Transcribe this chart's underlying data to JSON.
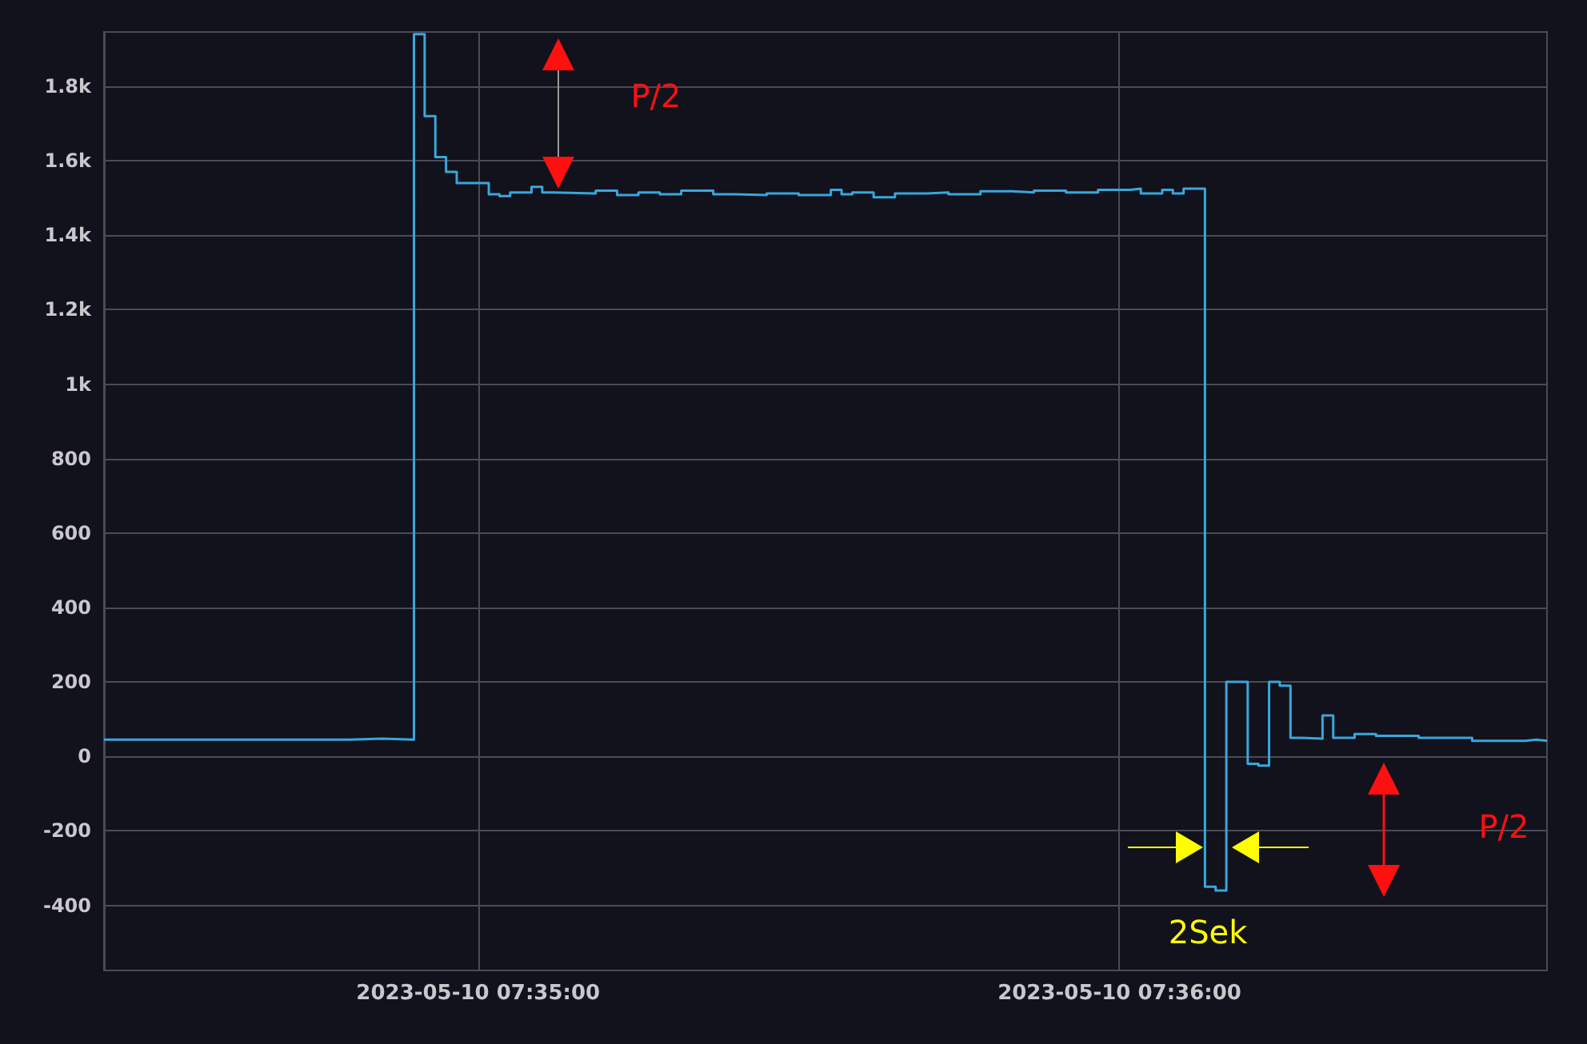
{
  "chart_data": {
    "type": "step",
    "x": [
      "2023-05-10T07:34:25",
      "2023-05-10T07:34:48",
      "2023-05-10T07:34:51",
      "2023-05-10T07:34:54",
      "2023-05-10T07:34:55",
      "2023-05-10T07:34:56",
      "2023-05-10T07:34:57",
      "2023-05-10T07:34:58",
      "2023-05-10T07:35:01",
      "2023-05-10T07:35:02",
      "2023-05-10T07:35:03",
      "2023-05-10T07:35:05",
      "2023-05-10T07:35:06",
      "2023-05-10T07:35:07",
      "2023-05-10T07:35:11",
      "2023-05-10T07:35:13",
      "2023-05-10T07:35:15",
      "2023-05-10T07:35:17",
      "2023-05-10T07:35:19",
      "2023-05-10T07:35:22",
      "2023-05-10T07:35:24",
      "2023-05-10T07:35:27",
      "2023-05-10T07:35:30",
      "2023-05-10T07:35:33",
      "2023-05-10T07:35:34",
      "2023-05-10T07:35:35",
      "2023-05-10T07:35:37",
      "2023-05-10T07:35:39",
      "2023-05-10T07:35:42",
      "2023-05-10T07:35:44",
      "2023-05-10T07:35:47",
      "2023-05-10T07:35:50",
      "2023-05-10T07:35:52",
      "2023-05-10T07:35:55",
      "2023-05-10T07:35:58",
      "2023-05-10T07:36:01",
      "2023-05-10T07:36:02",
      "2023-05-10T07:36:04",
      "2023-05-10T07:36:05",
      "2023-05-10T07:36:06",
      "2023-05-10T07:36:08",
      "2023-05-10T07:36:09",
      "2023-05-10T07:36:10",
      "2023-05-10T07:36:12",
      "2023-05-10T07:36:13",
      "2023-05-10T07:36:14",
      "2023-05-10T07:36:15",
      "2023-05-10T07:36:16",
      "2023-05-10T07:36:17",
      "2023-05-10T07:36:19",
      "2023-05-10T07:36:20",
      "2023-05-10T07:36:22",
      "2023-05-10T07:36:24",
      "2023-05-10T07:36:28",
      "2023-05-10T07:36:33",
      "2023-05-10T07:36:38",
      "2023-05-10T07:36:39",
      "2023-05-10T07:36:40"
    ],
    "series": [
      {
        "color": "#3aa6dc",
        "values": [
          45,
          48,
          45,
          1940,
          1720,
          1610,
          1570,
          1540,
          1510,
          1505,
          1515,
          1530,
          1515,
          1512,
          1520,
          1508,
          1515,
          1510,
          1520,
          1510,
          1508,
          1512,
          1508,
          1522,
          1510,
          1515,
          1502,
          1512,
          1515,
          1510,
          1518,
          1515,
          1520,
          1515,
          1522,
          1525,
          1512,
          1522,
          1512,
          1525,
          -350,
          -360,
          200,
          -20,
          -25,
          200,
          190,
          50,
          48,
          110,
          50,
          60,
          55,
          50,
          42,
          45,
          42,
          42
        ]
      }
    ],
    "xlim": [
      "2023-05-10T07:34:25",
      "2023-05-10T07:36:40"
    ],
    "xticks": [
      {
        "value": "2023-05-10T07:35:00",
        "label": "2023-05-10 07:35:00"
      },
      {
        "value": "2023-05-10T07:36:00",
        "label": "2023-05-10 07:36:00"
      }
    ],
    "ylim": [
      -575,
      1946
    ],
    "yticks": [
      -400,
      -200,
      0,
      200,
      400,
      600,
      800,
      {
        "value": 1000,
        "label": "1k"
      },
      {
        "value": 1200,
        "label": "1.2k"
      },
      {
        "value": 1400,
        "label": "1.4k"
      },
      {
        "value": 1600,
        "label": "1.6k"
      },
      {
        "value": 1800,
        "label": "1.8k"
      }
    ],
    "annotations": [
      "P/2",
      "P/2",
      "2Sek"
    ],
    "grid": true,
    "line_style": "solid",
    "marker": "none"
  }
}
